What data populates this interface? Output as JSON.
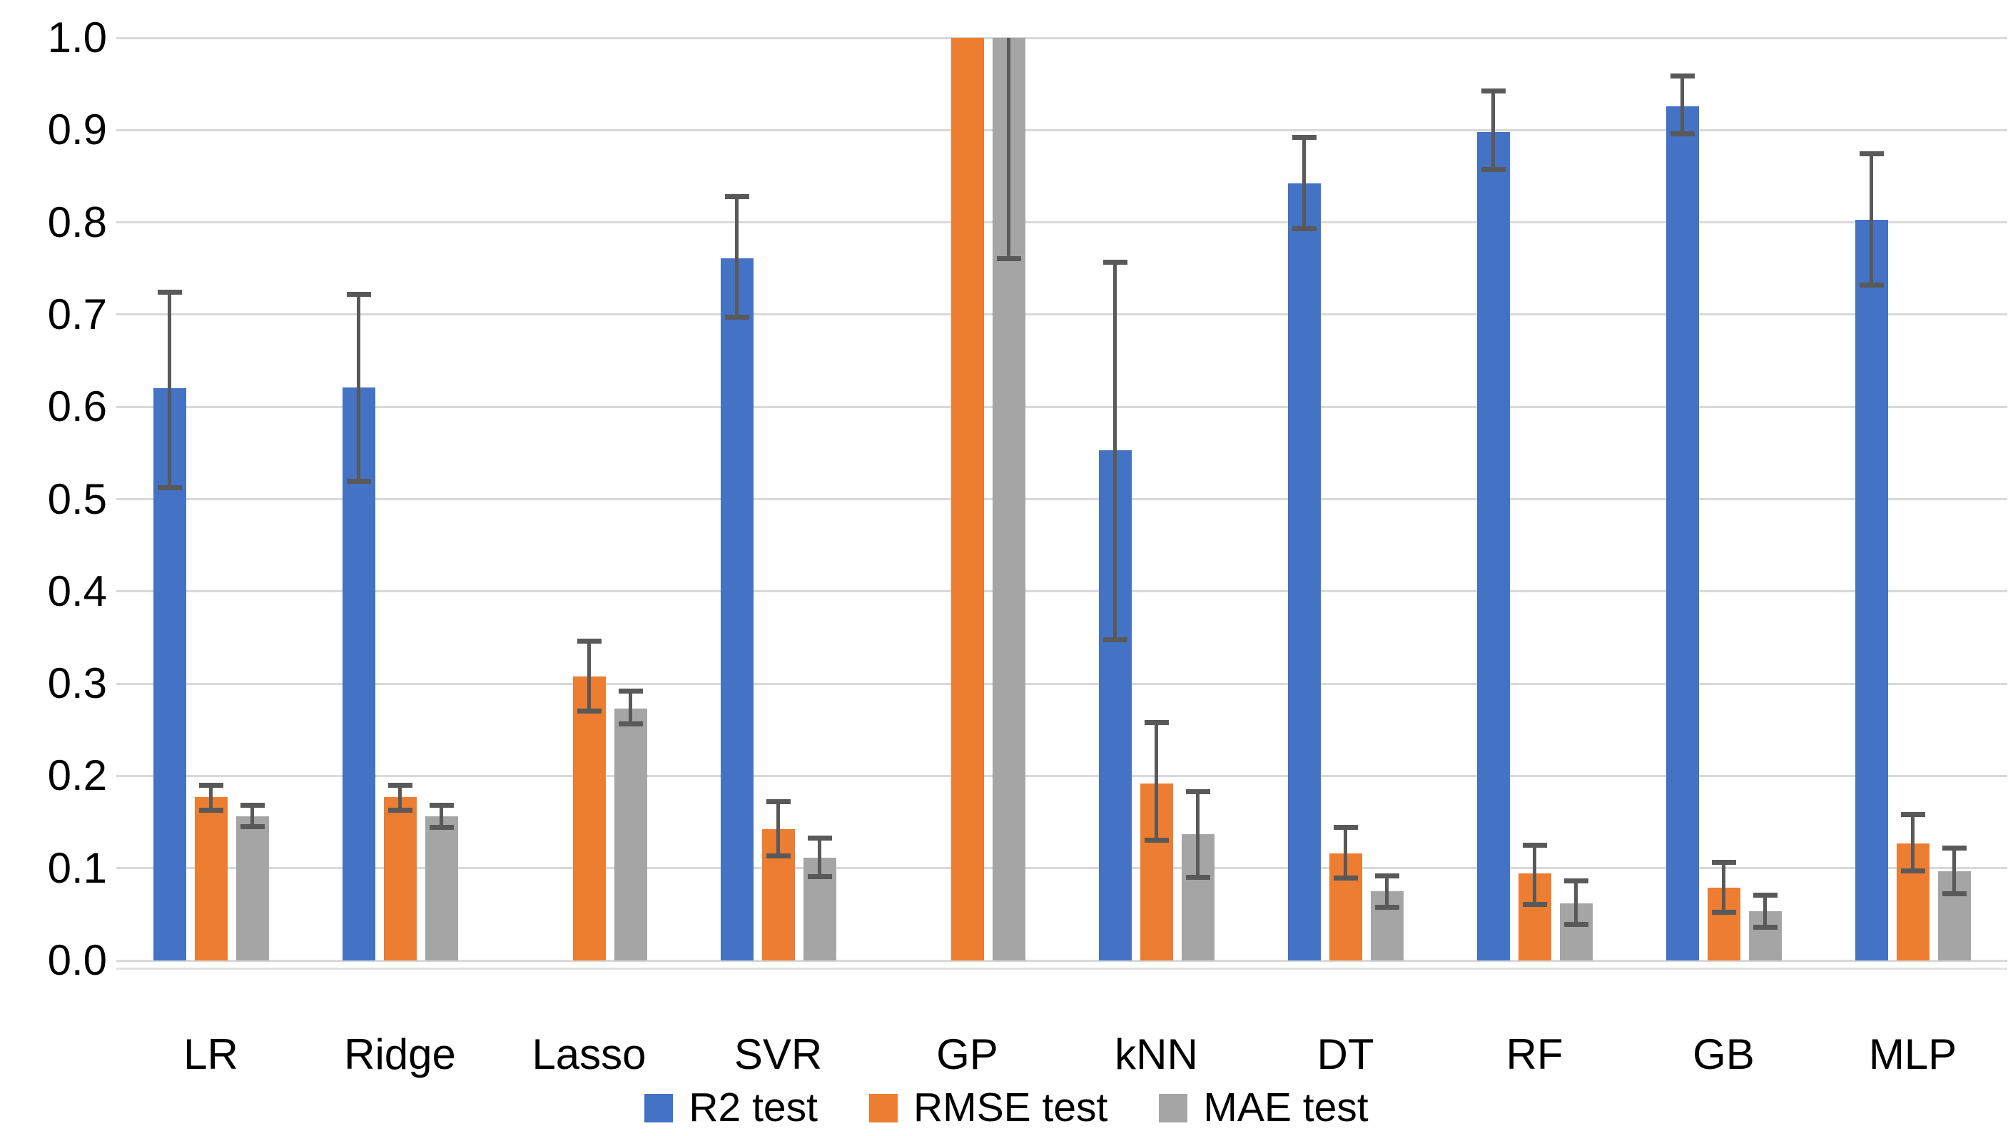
{
  "chart_data": {
    "type": "bar",
    "title": "",
    "xlabel": "",
    "ylabel": "",
    "ylim": [
      0.0,
      1.0
    ],
    "grid": true,
    "legend_position": "bottom",
    "yticks": [
      "1.0",
      "0.9",
      "0.8",
      "0.7",
      "0.6",
      "0.5",
      "0.4",
      "0.3",
      "0.2",
      "0.1",
      "0.0"
    ],
    "categories": [
      "LR",
      "Ridge",
      "Lasso",
      "SVR",
      "GP",
      "kNN",
      "DT",
      "RF",
      "GB",
      "MLP"
    ],
    "series": [
      {
        "name": "R2 test",
        "color": "#4472C4",
        "values": [
          0.62,
          0.621,
          null,
          0.761,
          null,
          0.553,
          0.842,
          0.898,
          0.926,
          0.803
        ],
        "err_lo": [
          0.512,
          0.519,
          null,
          0.697,
          null,
          0.348,
          0.793,
          0.857,
          0.896,
          0.732
        ],
        "err_hi": [
          0.724,
          0.722,
          null,
          0.828,
          null,
          0.757,
          0.892,
          0.942,
          0.959,
          0.874
        ],
        "clipped": [
          false,
          false,
          false,
          false,
          false,
          false,
          false,
          false,
          false,
          false
        ]
      },
      {
        "name": "RMSE test",
        "color": "#ED7D31",
        "values": [
          0.177,
          0.177,
          0.308,
          0.142,
          1.0,
          0.192,
          0.116,
          0.094,
          0.079,
          0.127
        ],
        "err_lo": [
          0.163,
          0.163,
          0.27,
          0.113,
          null,
          0.13,
          0.089,
          0.061,
          0.052,
          0.097
        ],
        "err_hi": [
          0.19,
          0.19,
          0.346,
          0.172,
          null,
          0.258,
          0.144,
          0.125,
          0.106,
          0.158
        ],
        "clipped": [
          false,
          false,
          false,
          false,
          true,
          false,
          false,
          false,
          false,
          false
        ]
      },
      {
        "name": "MAE test",
        "color": "#A5A5A5",
        "values": [
          0.156,
          0.156,
          0.273,
          0.111,
          1.0,
          0.137,
          0.075,
          0.062,
          0.053,
          0.097
        ],
        "err_lo": [
          0.145,
          0.144,
          0.256,
          0.091,
          0.761,
          0.09,
          0.058,
          0.039,
          0.036,
          0.072
        ],
        "err_hi": [
          0.168,
          0.168,
          0.292,
          0.133,
          null,
          0.183,
          0.092,
          0.086,
          0.071,
          0.122
        ],
        "clipped": [
          false,
          false,
          false,
          false,
          true,
          false,
          false,
          false,
          false,
          false
        ]
      }
    ],
    "colors": {
      "grid": "#D9D9D9",
      "error_bar": "#595959",
      "text": "#000000",
      "background": "#FFFFFF"
    }
  }
}
